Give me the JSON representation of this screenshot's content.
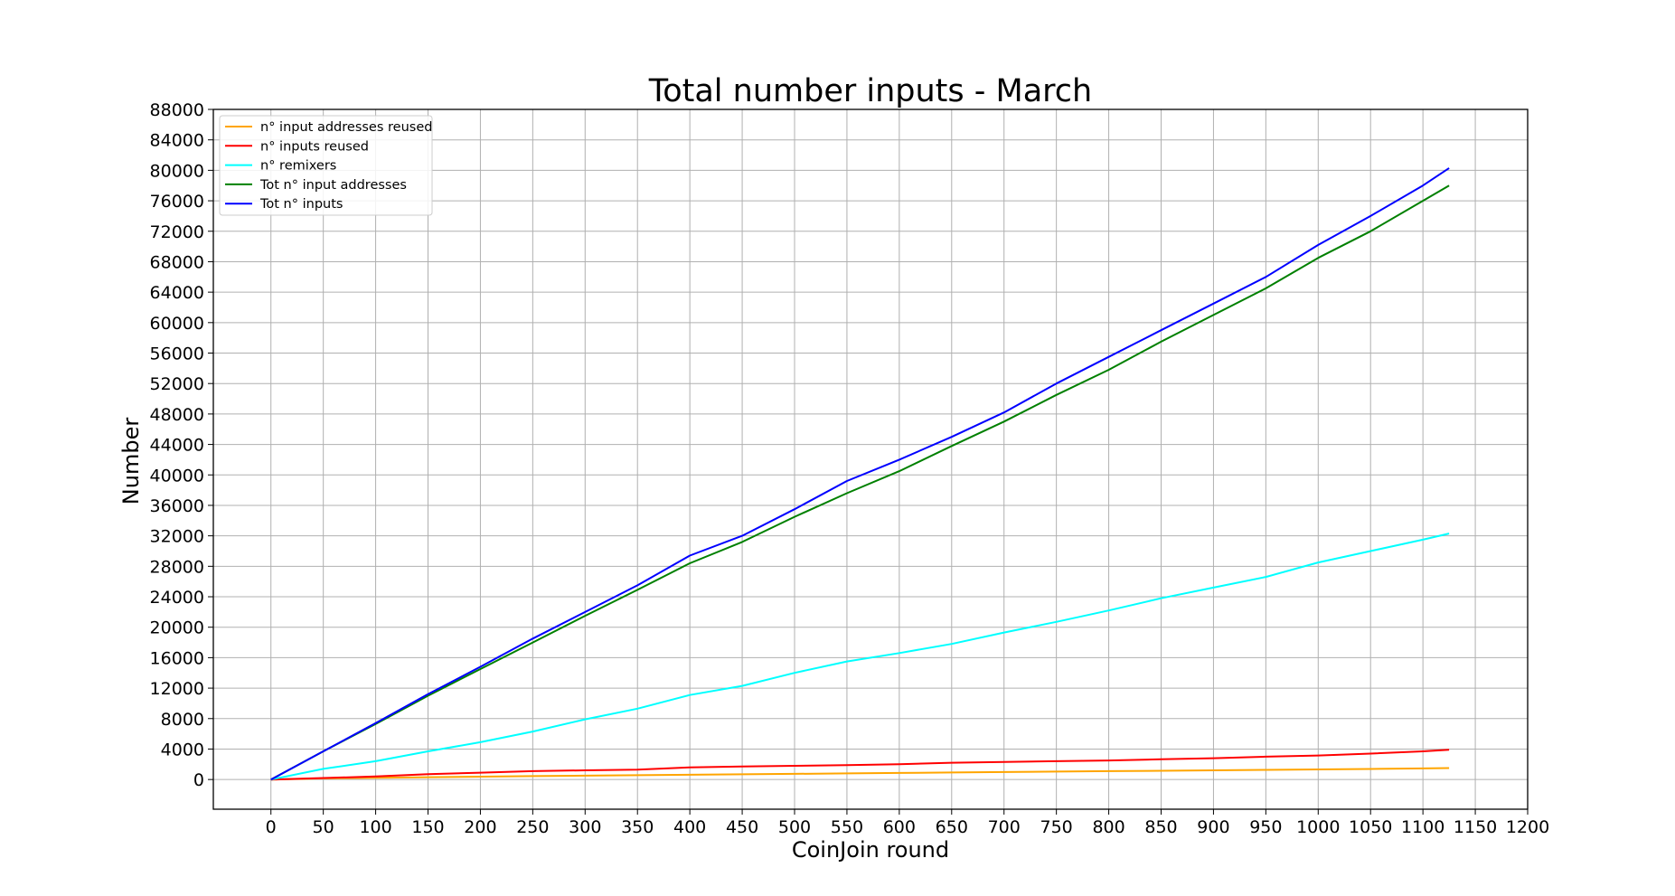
{
  "chart_data": {
    "type": "line",
    "title": "Total number inputs - March",
    "xlabel": "CoinJoin round",
    "ylabel": "Number",
    "xlim": [
      -55,
      1200
    ],
    "ylim": [
      -3900,
      88000
    ],
    "xticks": [
      0,
      50,
      100,
      150,
      200,
      250,
      300,
      350,
      400,
      450,
      500,
      550,
      600,
      650,
      700,
      750,
      800,
      850,
      900,
      950,
      1000,
      1050,
      1100,
      1150,
      1200
    ],
    "yticks": [
      0,
      4000,
      8000,
      12000,
      16000,
      20000,
      24000,
      28000,
      32000,
      36000,
      40000,
      44000,
      48000,
      52000,
      56000,
      60000,
      64000,
      68000,
      72000,
      76000,
      80000,
      84000,
      88000
    ],
    "grid": true,
    "legend_position": "top-left",
    "x": [
      0,
      50,
      100,
      150,
      200,
      250,
      300,
      350,
      400,
      450,
      500,
      550,
      600,
      650,
      700,
      750,
      800,
      850,
      900,
      950,
      1000,
      1050,
      1100,
      1125
    ],
    "series": [
      {
        "name": "n° input addresses reused",
        "color": "#ffa500",
        "values": [
          0,
          150,
          220,
          300,
          380,
          440,
          500,
          560,
          620,
          680,
          740,
          800,
          860,
          920,
          980,
          1040,
          1100,
          1150,
          1200,
          1260,
          1320,
          1380,
          1450,
          1500
        ]
      },
      {
        "name": "n° inputs reused",
        "color": "#ff0000",
        "values": [
          0,
          200,
          400,
          700,
          900,
          1100,
          1200,
          1300,
          1600,
          1700,
          1800,
          1900,
          2000,
          2200,
          2300,
          2400,
          2500,
          2650,
          2800,
          3000,
          3150,
          3400,
          3700,
          3900
        ]
      },
      {
        "name": "n° remixers",
        "color": "#00ffff",
        "values": [
          0,
          1400,
          2400,
          3700,
          4900,
          6300,
          7900,
          9300,
          11100,
          12300,
          14000,
          15500,
          16600,
          17800,
          19300,
          20700,
          22200,
          23800,
          25200,
          26600,
          28500,
          30000,
          31500,
          32300
        ]
      },
      {
        "name": "Tot n° input addresses",
        "color": "#008000",
        "values": [
          0,
          3700,
          7300,
          11000,
          14500,
          18000,
          21500,
          24900,
          28400,
          31200,
          34500,
          37600,
          40500,
          43800,
          47000,
          50500,
          53800,
          57500,
          61000,
          64500,
          68500,
          72000,
          76000,
          78000
        ]
      },
      {
        "name": "Tot n° inputs",
        "color": "#0000ff",
        "values": [
          0,
          3700,
          7400,
          11200,
          14800,
          18500,
          22000,
          25500,
          29400,
          32000,
          35500,
          39200,
          42000,
          45000,
          48200,
          52000,
          55500,
          59000,
          62500,
          66000,
          70200,
          74000,
          78000,
          80300
        ]
      }
    ]
  }
}
